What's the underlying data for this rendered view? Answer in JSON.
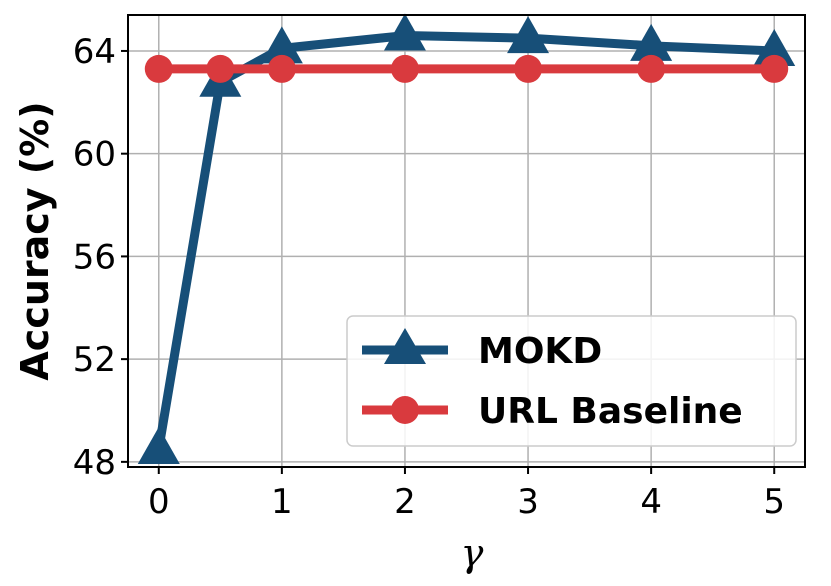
{
  "chart_data": {
    "type": "line",
    "xlabel": "γ",
    "ylabel": "Accuracy (%)",
    "xlim": [
      -0.25,
      5.25
    ],
    "ylim": [
      47.8,
      65.4
    ],
    "xticks": [
      0,
      1,
      2,
      3,
      4,
      5
    ],
    "xtick_labels": [
      "0",
      "1",
      "2",
      "3",
      "4",
      "5"
    ],
    "yticks": [
      48,
      52,
      56,
      60,
      64
    ],
    "ytick_labels": [
      "48",
      "52",
      "56",
      "60",
      "64"
    ],
    "grid": true,
    "legend_position": "lower-right",
    "series": [
      {
        "name": "MOKD",
        "color": "#174f78",
        "marker": "triangle",
        "x": [
          0,
          0.5,
          1,
          2,
          3,
          4,
          5
        ],
        "y": [
          48.5,
          62.8,
          64.1,
          64.6,
          64.5,
          64.2,
          64.0
        ]
      },
      {
        "name": "URL Baseline",
        "color": "#d93a3e",
        "marker": "circle",
        "x": [
          0,
          0.5,
          1,
          2,
          3,
          4,
          5
        ],
        "y": [
          63.3,
          63.3,
          63.3,
          63.3,
          63.3,
          63.3,
          63.3
        ]
      }
    ]
  }
}
